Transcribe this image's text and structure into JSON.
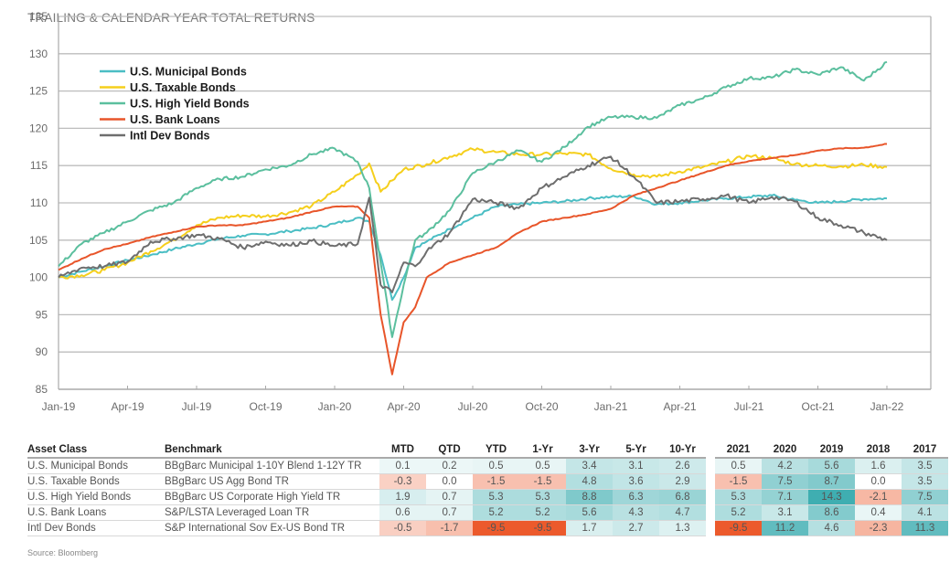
{
  "title": "TRAILING & CALENDAR YEAR TOTAL RETURNS",
  "chart_data": {
    "type": "line",
    "title": "TRAILING & CALENDAR YEAR TOTAL RETURNS",
    "xlabel": "",
    "ylabel": "",
    "ylim": [
      85,
      135
    ],
    "yticks": [
      85,
      90,
      95,
      100,
      105,
      110,
      115,
      120,
      125,
      130,
      135
    ],
    "xticks": [
      "Jan-19",
      "Apr-19",
      "Jul-19",
      "Oct-19",
      "Jan-20",
      "Apr-20",
      "Jul-20",
      "Oct-20",
      "Jan-21",
      "Apr-21",
      "Jul-21",
      "Oct-21",
      "Jan-22"
    ],
    "grid": true,
    "legend_position": "top-left",
    "x_unit": "months since Jan-19",
    "series": [
      {
        "name": "U.S.  Municipal Bonds",
        "color": "#4bbec4",
        "x": [
          0,
          1,
          2,
          3,
          4,
          5,
          6,
          7,
          8,
          9,
          10,
          11,
          12,
          13,
          13.5,
          14,
          14.5,
          15,
          15.5,
          16,
          17,
          18,
          19,
          20,
          21,
          22,
          23,
          24,
          25,
          26,
          27,
          28,
          29,
          30,
          31,
          32,
          33,
          34,
          35,
          36
        ],
        "y": [
          100,
          100.8,
          101.5,
          102.3,
          103,
          103.8,
          104.5,
          105.2,
          105.6,
          105.8,
          106.2,
          106.6,
          107.2,
          108,
          107.5,
          103,
          97,
          100,
          104,
          104.8,
          106.5,
          108,
          109.5,
          109.8,
          110,
          110.2,
          110.6,
          110.8,
          110.9,
          109.8,
          110,
          110.3,
          110.6,
          110.8,
          111,
          110.4,
          110,
          110.2,
          110.5,
          110.6
        ]
      },
      {
        "name": "U.S. Taxable Bonds",
        "color": "#f5cf1c",
        "x": [
          0,
          1,
          2,
          3,
          4,
          5,
          6,
          7,
          8,
          9,
          10,
          11,
          12,
          13,
          13.5,
          14,
          14.5,
          15,
          16,
          17,
          18,
          19,
          20,
          21,
          22,
          23,
          24,
          25,
          26,
          27,
          28,
          29,
          30,
          31,
          32,
          33,
          34,
          35,
          36
        ],
        "y": [
          100,
          100.3,
          101,
          102,
          103.5,
          105,
          107,
          108,
          108.3,
          108.2,
          108.7,
          109.6,
          111.5,
          113.8,
          115.3,
          111.5,
          113,
          114.5,
          115.2,
          116.2,
          117.2,
          116.8,
          116.5,
          116.5,
          116.6,
          116.5,
          114.6,
          113.8,
          113.5,
          114.2,
          114.8,
          115.5,
          116.3,
          116,
          115.2,
          115,
          114.9,
          115.1,
          114.8
        ]
      },
      {
        "name": "U.S. High Yield Bonds",
        "color": "#5bbf9e",
        "x": [
          0,
          1,
          2,
          3,
          4,
          5,
          6,
          7,
          8,
          9,
          10,
          11,
          12,
          13,
          13.5,
          14,
          14.5,
          15,
          15.5,
          16,
          17,
          18,
          19,
          20,
          21,
          22,
          23,
          24,
          25,
          26,
          27,
          28,
          29,
          30,
          31,
          32,
          33,
          34,
          35,
          36
        ],
        "y": [
          101.5,
          104.5,
          106,
          107.5,
          109,
          110,
          112,
          113.2,
          113.5,
          114.5,
          115,
          116.5,
          117.3,
          115.5,
          112,
          102,
          92,
          99,
          105,
          106,
          109,
          114,
          115.5,
          117,
          115.5,
          117.5,
          120.2,
          121.5,
          121.5,
          121.4,
          123.1,
          124,
          125.5,
          126.7,
          126.8,
          127.9,
          127.2,
          128.2,
          126.4,
          128.9
        ]
      },
      {
        "name": "U.S. Bank Loans",
        "color": "#e8552a",
        "x": [
          0,
          1,
          2,
          3,
          4,
          5,
          6,
          7,
          8,
          9,
          10,
          11,
          12,
          13,
          13.5,
          14,
          14.5,
          15,
          15.5,
          16,
          17,
          18,
          19,
          20,
          21,
          22,
          23,
          24,
          25,
          26,
          27,
          28,
          29,
          30,
          31,
          32,
          33,
          34,
          35,
          36
        ],
        "y": [
          101,
          102.5,
          103.8,
          104.5,
          105.4,
          106.1,
          106.8,
          107,
          107,
          107.5,
          108,
          108.8,
          109.5,
          109.5,
          108,
          95,
          87,
          94,
          96,
          100,
          102,
          103,
          104,
          106,
          107.5,
          108,
          108.5,
          109.2,
          111,
          112,
          113,
          114,
          115,
          115.6,
          116,
          116.4,
          117,
          117.3,
          117.4,
          117.9
        ]
      },
      {
        "name": "Intl Dev Bonds",
        "color": "#6e6e6e",
        "x": [
          0,
          1,
          2,
          3,
          4,
          5,
          6,
          7,
          8,
          9,
          10,
          11,
          12,
          13,
          13.5,
          14,
          14.5,
          15,
          15.5,
          16,
          17,
          18,
          19,
          20,
          21,
          22,
          23,
          24,
          25,
          26,
          27,
          28,
          29,
          30,
          31,
          32,
          33,
          34,
          35,
          36
        ],
        "y": [
          100,
          101.3,
          101.5,
          102.1,
          104.8,
          105.2,
          105.7,
          105.2,
          104,
          104.8,
          104.3,
          104.9,
          104.2,
          104.5,
          110.7,
          99,
          98,
          102,
          101.5,
          103.5,
          106,
          110.5,
          110,
          109.3,
          112,
          113.5,
          115,
          116.2,
          113.5,
          110,
          110.2,
          110.5,
          111,
          110,
          110.8,
          110.2,
          108,
          107,
          106,
          105
        ]
      }
    ]
  },
  "table": {
    "headers": [
      "Asset Class",
      "Benchmark",
      "MTD",
      "QTD",
      "YTD",
      "1-Yr",
      "3-Yr",
      "5-Yr",
      "10-Yr",
      "2021",
      "2020",
      "2019",
      "2018",
      "2017"
    ],
    "rows": [
      {
        "asset": "U.S. Municipal Bonds",
        "benchmark": "BBgBarc Municipal 1-10Y Blend 1-12Y TR",
        "trailing": [
          "0.1",
          "0.2",
          "0.5",
          "0.5",
          "3.4",
          "3.1",
          "2.6"
        ],
        "calendar": [
          "0.5",
          "4.2",
          "5.6",
          "1.6",
          "3.5"
        ]
      },
      {
        "asset": "U.S. Taxable Bonds",
        "benchmark": "BBgBarc US Agg Bond TR",
        "trailing": [
          "-0.3",
          "0.0",
          "-1.5",
          "-1.5",
          "4.8",
          "3.6",
          "2.9"
        ],
        "calendar": [
          "-1.5",
          "7.5",
          "8.7",
          "0.0",
          "3.5"
        ]
      },
      {
        "asset": "U.S. High Yield Bonds",
        "benchmark": "BBgBarc US Corporate High Yield TR",
        "trailing": [
          "1.9",
          "0.7",
          "5.3",
          "5.3",
          "8.8",
          "6.3",
          "6.8"
        ],
        "calendar": [
          "5.3",
          "7.1",
          "14.3",
          "-2.1",
          "7.5"
        ]
      },
      {
        "asset": "U.S. Bank Loans",
        "benchmark": "S&P/LSTA Leveraged Loan TR",
        "trailing": [
          "0.6",
          "0.7",
          "5.2",
          "5.2",
          "5.6",
          "4.3",
          "4.7"
        ],
        "calendar": [
          "5.2",
          "3.1",
          "8.6",
          "0.4",
          "4.1"
        ]
      },
      {
        "asset": "Intl Dev Bonds",
        "benchmark": "S&P International Sov Ex-US Bond TR",
        "trailing": [
          "-0.5",
          "-1.7",
          "-9.5",
          "-9.5",
          "1.7",
          "2.7",
          "1.3"
        ],
        "calendar": [
          "-9.5",
          "11.2",
          "4.6",
          "-2.3",
          "11.3"
        ]
      }
    ]
  },
  "colors": {
    "positive": "#2aa5a8",
    "negative": "#ec5a2c"
  },
  "source": "Source: Bloomberg"
}
